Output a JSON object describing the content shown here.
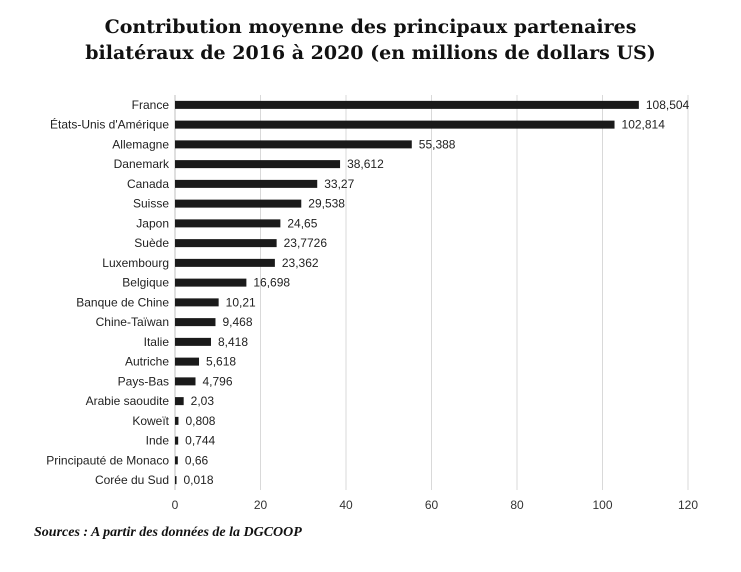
{
  "title_line1": "Contribution moyenne des principaux partenaires",
  "title_line2": "bilatéraux de 2016 à 2020 (en millions de dollars US)",
  "source": "Sources : A partir des données de la DGCOOP",
  "chart_data": {
    "type": "bar",
    "orientation": "horizontal",
    "title": "Contribution moyenne des principaux partenaires bilatéraux de 2016 à 2020 (en millions de dollars US)",
    "categories": [
      "France",
      "États-Unis d'Amérique",
      "Allemagne",
      "Danemark",
      "Canada",
      "Suisse",
      "Japon",
      "Suède",
      "Luxembourg",
      "Belgique",
      "Banque de Chine",
      "Chine-Taïwan",
      "Italie",
      "Autriche",
      "Pays-Bas",
      "Arabie saoudite",
      "Koweït",
      "Inde",
      "Principauté de Monaco",
      "Corée du Sud"
    ],
    "values": [
      108.504,
      102.814,
      55.388,
      38.612,
      33.27,
      29.538,
      24.65,
      23.7726,
      23.362,
      16.698,
      10.21,
      9.468,
      8.418,
      5.618,
      4.796,
      2.03,
      0.808,
      0.744,
      0.66,
      0.018
    ],
    "value_labels": [
      "108,504",
      "102,814",
      "55,388",
      "38,612",
      "33,27",
      "29,538",
      "24,65",
      "23,7726",
      "23,362",
      "16,698",
      "10,21",
      "9,468",
      "8,418",
      "5,618",
      "4,796",
      "2,03",
      "0,808",
      "0,744",
      "0,66",
      "0,018"
    ],
    "xlim": [
      0,
      120
    ],
    "xticks": [
      0,
      20,
      40,
      60,
      80,
      100,
      120
    ],
    "xlabel": "",
    "ylabel": "",
    "grid": "vertical",
    "bar_color": "#1a1a1a",
    "grid_color": "#d9d9d9"
  }
}
